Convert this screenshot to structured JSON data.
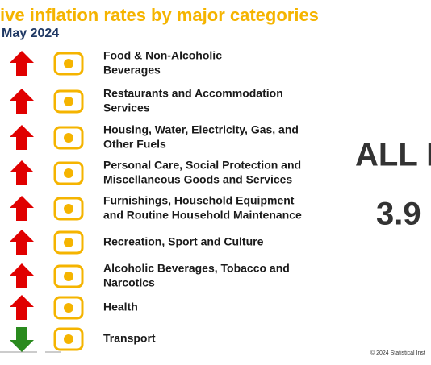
{
  "header": {
    "title": "ive inflation rates by major categories",
    "subtitle": "May 2024"
  },
  "items": [
    {
      "lines": [
        "Food & Non-Alcoholic",
        "Beverages"
      ],
      "trend": "up"
    },
    {
      "lines": [
        "Restaurants and Accommodation",
        "Services"
      ],
      "trend": "up"
    },
    {
      "lines": [
        "Housing, Water, Electricity, Gas, and",
        "Other Fuels"
      ],
      "trend": "up"
    },
    {
      "lines": [
        "Personal Care, Social Protection and",
        "Miscellaneous Goods and Services"
      ],
      "trend": "up"
    },
    {
      "lines": [
        "Furnishings, Household Equipment",
        "and Routine Household Maintenance"
      ],
      "trend": "up"
    },
    {
      "lines": [
        "Recreation, Sport and Culture"
      ],
      "trend": "up"
    },
    {
      "lines": [
        "Alcoholic Beverages, Tobacco and",
        "Narcotics"
      ],
      "trend": "up"
    },
    {
      "lines": [
        "Health"
      ],
      "trend": "up"
    },
    {
      "lines": [
        "Transport"
      ],
      "trend": "down"
    }
  ],
  "summary": {
    "label": "ALL I",
    "value": "3.9"
  },
  "footer": "© 2024 Statistical Inst"
}
